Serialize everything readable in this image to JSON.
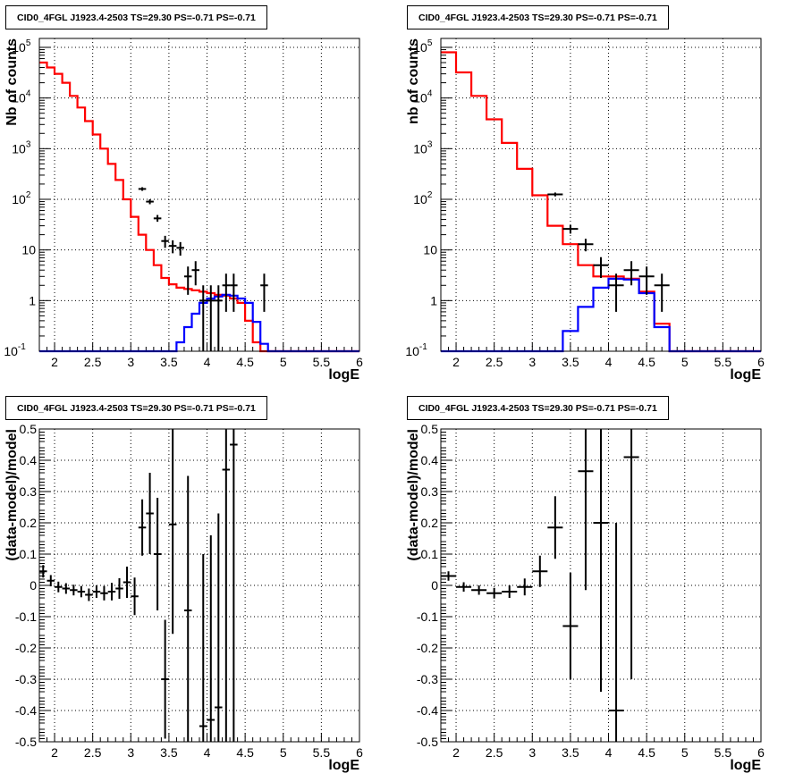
{
  "colors": {
    "data": "#000000",
    "total_model": "#ff0000",
    "source_model": "#0000ff",
    "grid": "#000000"
  },
  "chart_data": [
    {
      "type": "line",
      "title": "CID0_4FGL J1923.4-2503 TS=29.30 PS=-0.71 PS=-0.71",
      "xlabel": "logE",
      "ylabel": "Nb of counts",
      "xlim": [
        1.8,
        6.0
      ],
      "ylim": [
        0.1,
        150000
      ],
      "yscale": "log",
      "grid": true,
      "x_ticks": [
        "2",
        "2.5",
        "3",
        "3.5",
        "4",
        "4.5",
        "5",
        "5.5",
        "6"
      ],
      "y_ticks": [
        "10^-1",
        "1",
        "10",
        "10^2",
        "10^3",
        "10^4",
        "10^5"
      ],
      "bin_edges": [
        1.8,
        1.9,
        2.0,
        2.1,
        2.2,
        2.3,
        2.4,
        2.5,
        2.6,
        2.7,
        2.8,
        2.9,
        3.0,
        3.1,
        3.2,
        3.3,
        3.4,
        3.5,
        3.6,
        3.7,
        3.8,
        3.9,
        4.0,
        4.1,
        4.2,
        4.3,
        4.4,
        4.5,
        4.6,
        4.7,
        4.8,
        4.9,
        5.0,
        5.1,
        5.2,
        5.3,
        5.4,
        5.5,
        5.6,
        5.7,
        5.8,
        5.9,
        6.0
      ],
      "series": [
        {
          "values": [
            50000,
            40000,
            30000,
            20000,
            11000,
            6500,
            3500,
            1900,
            1000,
            500,
            240,
            100,
            45,
            20,
            10,
            5,
            2.8,
            2.1,
            1.8,
            1.7,
            1.6,
            1.5,
            1.4,
            1.3,
            1.25,
            1.1,
            0.9,
            0.4,
            0.15,
            0.1,
            0.1,
            0.1,
            0.1,
            0.1,
            0.1,
            0.1,
            0.1,
            0.1,
            0.1,
            0.1,
            0.1,
            0.1
          ]
        },
        {
          "values": [
            0.1,
            0.1,
            0.1,
            0.1,
            0.1,
            0.1,
            0.1,
            0.1,
            0.1,
            0.1,
            0.1,
            0.1,
            0.1,
            0.1,
            0.1,
            0.1,
            0.1,
            0.1,
            0.15,
            0.3,
            0.55,
            0.9,
            1.1,
            1.2,
            1.3,
            1.25,
            1.1,
            0.9,
            0.38,
            0.14,
            0.1,
            0.1,
            0.1,
            0.1,
            0.1,
            0.1,
            0.1,
            0.1,
            0.1,
            0.1,
            0.1,
            0.1
          ]
        }
      ],
      "points": [
        {
          "x": 3.15,
          "y": 160,
          "ylo": 147,
          "yhi": 173
        },
        {
          "x": 3.25,
          "y": 90,
          "ylo": 80,
          "yhi": 100
        },
        {
          "x": 3.35,
          "y": 42,
          "ylo": 36,
          "yhi": 49
        },
        {
          "x": 3.45,
          "y": 15,
          "ylo": 11,
          "yhi": 19
        },
        {
          "x": 3.55,
          "y": 12,
          "ylo": 8.6,
          "yhi": 15.5
        },
        {
          "x": 3.65,
          "y": 11,
          "ylo": 7.7,
          "yhi": 14.3
        },
        {
          "x": 3.75,
          "y": 3,
          "ylo": 1.3,
          "yhi": 4.7
        },
        {
          "x": 3.85,
          "y": 4,
          "ylo": 2.0,
          "yhi": 6.0
        },
        {
          "x": 3.95,
          "y": 1,
          "ylo": 0.1,
          "yhi": 2.0
        },
        {
          "x": 4.05,
          "y": 1,
          "ylo": 0.1,
          "yhi": 2.0
        },
        {
          "x": 4.15,
          "y": 1,
          "ylo": 0.1,
          "yhi": 2.0
        },
        {
          "x": 4.25,
          "y": 2,
          "ylo": 0.6,
          "yhi": 3.4
        },
        {
          "x": 4.35,
          "y": 2,
          "ylo": 0.6,
          "yhi": 3.4
        },
        {
          "x": 4.75,
          "y": 2,
          "ylo": 0.6,
          "yhi": 3.4
        }
      ]
    },
    {
      "type": "line",
      "title": "CID0_4FGL J1923.4-2503 TS=29.30 PS=-0.71 PS=-0.71",
      "xlabel": "logE",
      "ylabel": "nb of counts",
      "xlim": [
        1.8,
        6.0
      ],
      "ylim": [
        0.1,
        150000
      ],
      "yscale": "log",
      "grid": true,
      "x_ticks": [
        "2",
        "2.5",
        "3",
        "3.5",
        "4",
        "4.5",
        "5",
        "5.5",
        "6"
      ],
      "y_ticks": [
        "10^-1",
        "1",
        "10",
        "10^2",
        "10^3",
        "10^4",
        "10^5"
      ],
      "bin_edges": [
        1.8,
        2.0,
        2.2,
        2.4,
        2.6,
        2.8,
        3.0,
        3.2,
        3.4,
        3.6,
        3.8,
        4.0,
        4.2,
        4.4,
        4.6,
        4.8,
        5.0,
        5.2,
        5.4,
        5.6,
        5.8,
        6.0
      ],
      "series": [
        {
          "values": [
            80000,
            32000,
            11000,
            3800,
            1300,
            400,
            120,
            30,
            13,
            5,
            3,
            3,
            2.7,
            1.5,
            0.35,
            0.1,
            0.1,
            0.1,
            0.1,
            0.1,
            0.1
          ]
        },
        {
          "values": [
            0.1,
            0.1,
            0.1,
            0.1,
            0.1,
            0.1,
            0.1,
            0.1,
            0.25,
            0.75,
            1.8,
            2.7,
            2.6,
            1.4,
            0.3,
            0.1,
            0.1,
            0.1,
            0.1,
            0.1,
            0.1
          ]
        }
      ],
      "points": [
        {
          "x": 3.3,
          "y": 125,
          "ylo": 114,
          "yhi": 136
        },
        {
          "x": 3.5,
          "y": 26,
          "ylo": 21,
          "yhi": 31
        },
        {
          "x": 3.7,
          "y": 13,
          "ylo": 9.4,
          "yhi": 16.6
        },
        {
          "x": 3.9,
          "y": 5,
          "ylo": 2.8,
          "yhi": 7.2
        },
        {
          "x": 4.1,
          "y": 2,
          "ylo": 0.6,
          "yhi": 3.4
        },
        {
          "x": 4.3,
          "y": 4,
          "ylo": 2.0,
          "yhi": 6.0
        },
        {
          "x": 4.5,
          "y": 3,
          "ylo": 1.3,
          "yhi": 4.7
        },
        {
          "x": 4.7,
          "y": 2,
          "ylo": 0.6,
          "yhi": 3.4
        }
      ]
    },
    {
      "type": "scatter",
      "title": "CID0_4FGL J1923.4-2503 TS=29.30 PS=-0.71 PS=-0.71",
      "xlabel": "logE",
      "ylabel": "(data-model)/model",
      "xlim": [
        1.8,
        6.0
      ],
      "ylim": [
        -0.5,
        0.5
      ],
      "grid": true,
      "x_ticks": [
        "2",
        "2.5",
        "3",
        "3.5",
        "4",
        "4.5",
        "5",
        "5.5",
        "6"
      ],
      "y_ticks": [
        "-0.5",
        "-0.4",
        "-0.3",
        "-0.2",
        "-0.1",
        "0",
        "0.1",
        "0.2",
        "0.3",
        "0.4",
        "0.5"
      ],
      "bin_width": 0.1,
      "points": [
        {
          "x": 1.85,
          "y": 0.045,
          "err": 0.02
        },
        {
          "x": 1.95,
          "y": 0.015,
          "err": 0.018
        },
        {
          "x": 2.05,
          "y": -0.005,
          "err": 0.017
        },
        {
          "x": 2.15,
          "y": -0.01,
          "err": 0.017
        },
        {
          "x": 2.25,
          "y": -0.015,
          "err": 0.017
        },
        {
          "x": 2.35,
          "y": -0.02,
          "err": 0.018
        },
        {
          "x": 2.45,
          "y": -0.03,
          "err": 0.02
        },
        {
          "x": 2.55,
          "y": -0.02,
          "err": 0.02
        },
        {
          "x": 2.65,
          "y": -0.025,
          "err": 0.023
        },
        {
          "x": 2.75,
          "y": -0.02,
          "err": 0.028
        },
        {
          "x": 2.85,
          "y": -0.01,
          "err": 0.033
        },
        {
          "x": 2.95,
          "y": 0.01,
          "err": 0.05
        },
        {
          "x": 3.05,
          "y": -0.035,
          "err": 0.06
        },
        {
          "x": 3.15,
          "y": 0.185,
          "err": 0.09
        },
        {
          "x": 3.25,
          "y": 0.23,
          "err": 0.13
        },
        {
          "x": 3.35,
          "y": 0.1,
          "err": 0.18
        },
        {
          "x": 3.45,
          "y": -0.3,
          "err": 0.19
        },
        {
          "x": 3.55,
          "y": 0.195,
          "err": 0.35
        },
        {
          "x": 3.75,
          "y": -0.08,
          "err": 0.43
        },
        {
          "x": 3.95,
          "y": -0.45,
          "err": 0.55
        },
        {
          "x": 4.05,
          "y": -0.43,
          "err": 0.59
        },
        {
          "x": 4.15,
          "y": -0.39,
          "err": 0.62
        },
        {
          "x": 4.25,
          "y": 0.37,
          "err": 0.9
        },
        {
          "x": 4.35,
          "y": 0.45,
          "err": 0.95
        }
      ]
    },
    {
      "type": "scatter",
      "title": "CID0_4FGL J1923.4-2503 TS=29.30 PS=-0.71 PS=-0.71",
      "xlabel": "logE",
      "ylabel": "(data-model)/model",
      "xlim": [
        1.8,
        6.0
      ],
      "ylim": [
        -0.5,
        0.5
      ],
      "grid": true,
      "x_ticks": [
        "2",
        "2.5",
        "3",
        "3.5",
        "4",
        "4.5",
        "5",
        "5.5",
        "6"
      ],
      "y_ticks": [
        "-0.5",
        "-0.4",
        "-0.3",
        "-0.2",
        "-0.1",
        "0",
        "0.1",
        "0.2",
        "0.3",
        "0.4",
        "0.5"
      ],
      "bin_width": 0.2,
      "points": [
        {
          "x": 1.9,
          "y": 0.03,
          "err": 0.015
        },
        {
          "x": 2.1,
          "y": -0.005,
          "err": 0.015
        },
        {
          "x": 2.3,
          "y": -0.015,
          "err": 0.015
        },
        {
          "x": 2.5,
          "y": -0.025,
          "err": 0.017
        },
        {
          "x": 2.7,
          "y": -0.02,
          "err": 0.02
        },
        {
          "x": 2.9,
          "y": -0.005,
          "err": 0.027
        },
        {
          "x": 3.1,
          "y": 0.045,
          "err": 0.05
        },
        {
          "x": 3.3,
          "y": 0.185,
          "err": 0.1
        },
        {
          "x": 3.5,
          "y": -0.13,
          "err": 0.17
        },
        {
          "x": 3.7,
          "y": 0.365,
          "err": 0.38
        },
        {
          "x": 3.9,
          "y": 0.2,
          "err": 0.54
        },
        {
          "x": 4.1,
          "y": -0.4,
          "err": 0.6
        },
        {
          "x": 4.3,
          "y": 0.41,
          "err": 0.71
        }
      ]
    }
  ]
}
